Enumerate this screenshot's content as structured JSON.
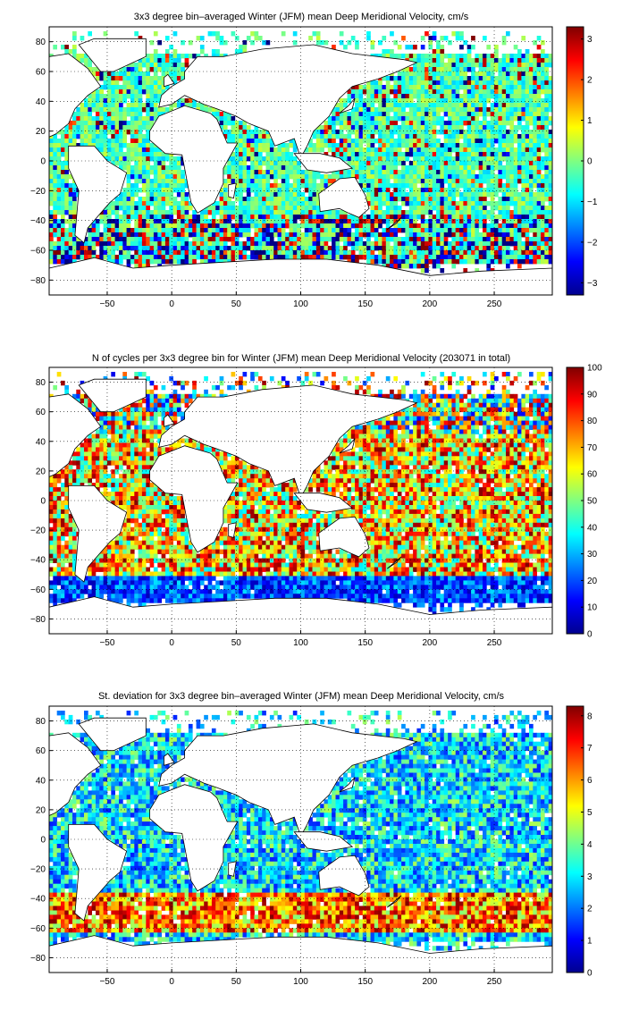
{
  "figure": {
    "panels": [
      {
        "id": "mean",
        "title": "3x3 degree bin–averaged Winter (JFM) mean Deep Meridional Velocity, cm/s",
        "colorbar_ticks": [
          "3",
          "2",
          "1",
          "0",
          "−1",
          "−2",
          "−3"
        ],
        "colorbar_range": [
          -3.3,
          3.3
        ]
      },
      {
        "id": "count",
        "title": "N of cycles per 3x3 degree bin for Winter (JFM) mean Deep Meridional Velocity (203071 in total)",
        "colorbar_ticks": [
          "100",
          "90",
          "80",
          "70",
          "60",
          "50",
          "40",
          "30",
          "20",
          "10",
          "0"
        ],
        "colorbar_range": [
          0,
          100
        ]
      },
      {
        "id": "std",
        "title": "St. deviation for 3x3 degree bin–averaged Winter (JFM) mean Deep Meridional Velocity, cm/s",
        "colorbar_ticks": [
          "8",
          "7",
          "6",
          "5",
          "4",
          "3",
          "2",
          "1",
          "0"
        ],
        "colorbar_range": [
          0,
          8.3
        ]
      }
    ],
    "x_ticks": [
      "−50",
      "0",
      "50",
      "100",
      "150",
      "200",
      "250"
    ],
    "y_ticks": [
      "80",
      "60",
      "40",
      "20",
      "0",
      "−20",
      "−40",
      "−60",
      "−80"
    ],
    "x_range": [
      -95,
      295
    ],
    "y_range": [
      -90,
      90
    ],
    "colormap": "jet",
    "grid": "dotted"
  }
}
